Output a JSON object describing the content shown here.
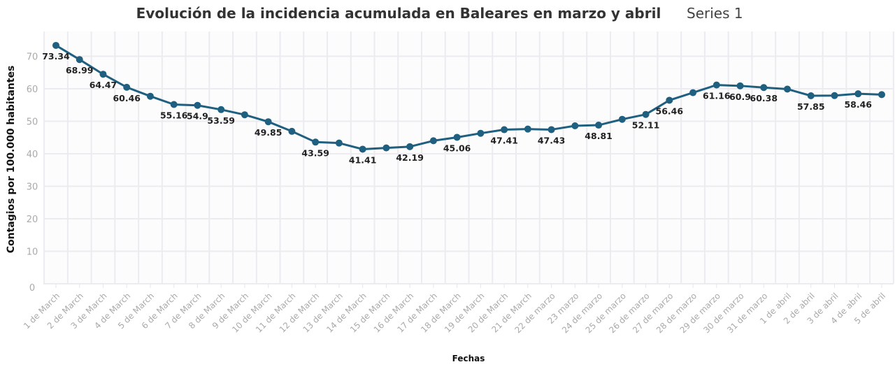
{
  "chart_data": {
    "type": "line",
    "title": "Evolución de la incidencia acumulada en Baleares en marzo y abril",
    "legend": {
      "entries": [
        "Series 1"
      ],
      "placement": "top-right"
    },
    "xlabel": "Fechas",
    "ylabel": "Contagios por 100.000 habitantes",
    "ylim": [
      0,
      75
    ],
    "yticks": [
      0,
      10,
      20,
      30,
      40,
      50,
      60,
      70
    ],
    "grid": true,
    "line_color": "#1f5f80",
    "categories": [
      "1 de March",
      "2 de March",
      "3 de March",
      "4 de March",
      "5 de March",
      "6 de March",
      "7 de March",
      "8 de March",
      "9 de March",
      "10 de March",
      "11 de March",
      "12 de March",
      "13 de March",
      "14 de March",
      "15 de March",
      "16 de March",
      "17 de March",
      "18 de March",
      "19 de March",
      "20 de March",
      "21 de March",
      "22 de marzo",
      "23 marzo",
      "24 de marzo",
      "25 de marzo",
      "26 de marzo",
      "27 de marzo",
      "28 de marzo",
      "29 de marzo",
      "30 de marzo",
      "31 de marzo",
      "1 de abril",
      "2 de abril",
      "3 de abril",
      "4 de abril",
      "5 de abril"
    ],
    "series": [
      {
        "name": "Series 1",
        "values": [
          73.34,
          68.99,
          64.47,
          60.46,
          57.7,
          55.16,
          54.9,
          53.59,
          52.0,
          49.85,
          46.9,
          43.59,
          43.3,
          41.41,
          41.8,
          42.19,
          44.0,
          45.06,
          46.3,
          47.41,
          47.6,
          47.43,
          48.6,
          48.81,
          50.6,
          52.11,
          56.46,
          58.8,
          61.16,
          60.9,
          60.38,
          59.9,
          57.85,
          57.9,
          58.46,
          58.2
        ],
        "data_labels": [
          {
            "index": 0,
            "text": "73.34"
          },
          {
            "index": 1,
            "text": "68.99"
          },
          {
            "index": 2,
            "text": "64.47"
          },
          {
            "index": 3,
            "text": "60.46"
          },
          {
            "index": 5,
            "text": "55.16"
          },
          {
            "index": 6,
            "text": "54.9"
          },
          {
            "index": 7,
            "text": "53.59"
          },
          {
            "index": 9,
            "text": "49.85"
          },
          {
            "index": 11,
            "text": "43.59"
          },
          {
            "index": 13,
            "text": "41.41"
          },
          {
            "index": 15,
            "text": "42.19"
          },
          {
            "index": 17,
            "text": "45.06"
          },
          {
            "index": 19,
            "text": "47.41"
          },
          {
            "index": 21,
            "text": "47.43"
          },
          {
            "index": 23,
            "text": "48.81"
          },
          {
            "index": 25,
            "text": "52.11"
          },
          {
            "index": 26,
            "text": "56.46"
          },
          {
            "index": 28,
            "text": "61.16"
          },
          {
            "index": 29,
            "text": "60.9"
          },
          {
            "index": 30,
            "text": "60.38"
          },
          {
            "index": 32,
            "text": "57.85"
          },
          {
            "index": 34,
            "text": "58.46"
          }
        ]
      }
    ]
  }
}
